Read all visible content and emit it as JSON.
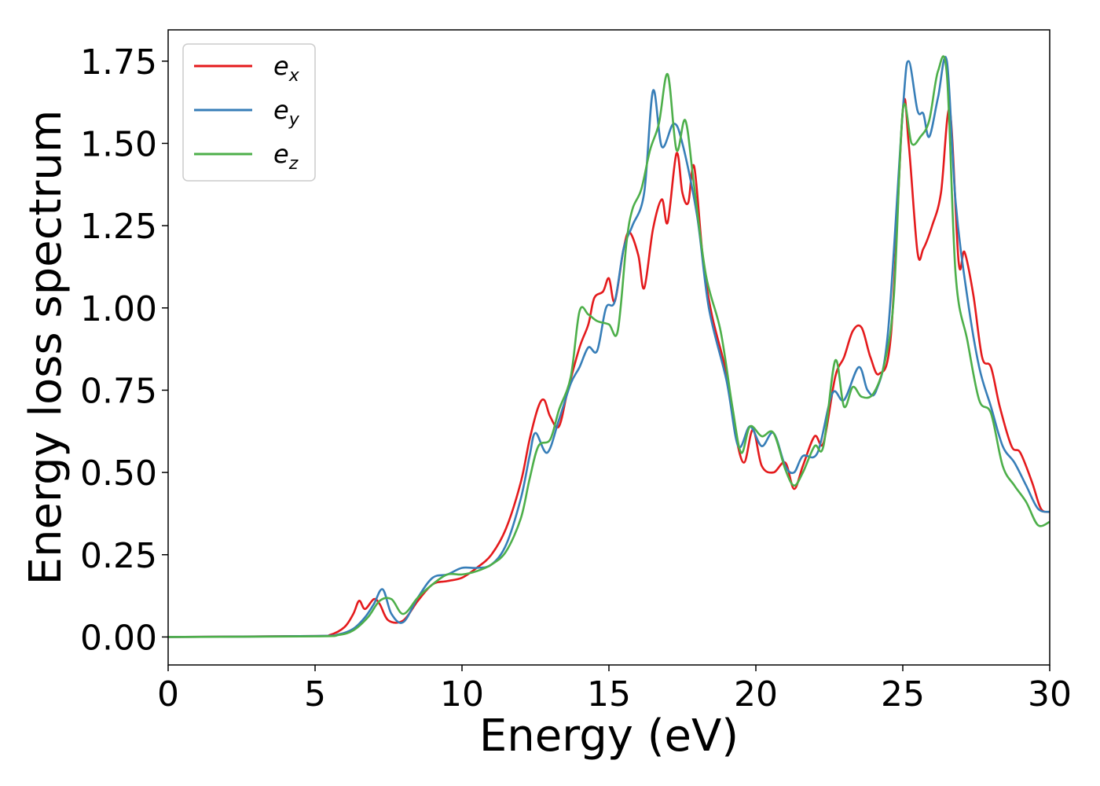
{
  "chart_data": {
    "type": "line",
    "xlabel": "Energy (eV)",
    "ylabel": "Energy loss spectrum",
    "xlim": [
      0,
      30
    ],
    "ylim": [
      -0.085,
      1.845
    ],
    "xticks": [
      "0",
      "5",
      "10",
      "15",
      "20",
      "25",
      "30"
    ],
    "yticks": [
      "0.00",
      "0.25",
      "0.50",
      "0.75",
      "1.00",
      "1.25",
      "1.50",
      "1.75"
    ],
    "grid": false,
    "legend_position": "top-left",
    "series": [
      {
        "name": "e",
        "subscript": "x",
        "color": "#e41a1c",
        "points": [
          [
            0,
            0
          ],
          [
            5,
            0.003
          ],
          [
            5.5,
            0.006
          ],
          [
            6,
            0.03
          ],
          [
            6.3,
            0.07
          ],
          [
            6.5,
            0.11
          ],
          [
            6.7,
            0.085
          ],
          [
            7,
            0.115
          ],
          [
            7.2,
            0.1
          ],
          [
            7.5,
            0.05
          ],
          [
            8,
            0.05
          ],
          [
            8.5,
            0.11
          ],
          [
            9,
            0.16
          ],
          [
            9.5,
            0.17
          ],
          [
            10,
            0.18
          ],
          [
            10.5,
            0.21
          ],
          [
            11,
            0.25
          ],
          [
            11.5,
            0.33
          ],
          [
            12,
            0.47
          ],
          [
            12.3,
            0.6
          ],
          [
            12.6,
            0.7
          ],
          [
            12.8,
            0.72
          ],
          [
            13,
            0.67
          ],
          [
            13.3,
            0.64
          ],
          [
            13.6,
            0.75
          ],
          [
            14,
            0.88
          ],
          [
            14.3,
            0.95
          ],
          [
            14.5,
            1.03
          ],
          [
            14.8,
            1.05
          ],
          [
            15,
            1.09
          ],
          [
            15.2,
            1.02
          ],
          [
            15.5,
            1.18
          ],
          [
            15.7,
            1.23
          ],
          [
            16,
            1.16
          ],
          [
            16.2,
            1.06
          ],
          [
            16.5,
            1.24
          ],
          [
            16.8,
            1.33
          ],
          [
            17,
            1.26
          ],
          [
            17.3,
            1.47
          ],
          [
            17.5,
            1.35
          ],
          [
            17.7,
            1.32
          ],
          [
            17.9,
            1.43
          ],
          [
            18.2,
            1.15
          ],
          [
            18.5,
            0.98
          ],
          [
            19,
            0.8
          ],
          [
            19.3,
            0.62
          ],
          [
            19.6,
            0.53
          ],
          [
            19.9,
            0.63
          ],
          [
            20.2,
            0.52
          ],
          [
            20.6,
            0.5
          ],
          [
            21,
            0.53
          ],
          [
            21.3,
            0.45
          ],
          [
            21.6,
            0.52
          ],
          [
            22,
            0.61
          ],
          [
            22.3,
            0.59
          ],
          [
            22.7,
            0.79
          ],
          [
            23,
            0.85
          ],
          [
            23.3,
            0.93
          ],
          [
            23.6,
            0.94
          ],
          [
            23.9,
            0.85
          ],
          [
            24.2,
            0.8
          ],
          [
            24.6,
            0.92
          ],
          [
            25,
            1.6
          ],
          [
            25.2,
            1.5
          ],
          [
            25.5,
            1.17
          ],
          [
            25.7,
            1.18
          ],
          [
            26,
            1.25
          ],
          [
            26.3,
            1.35
          ],
          [
            26.6,
            1.6
          ],
          [
            26.9,
            1.14
          ],
          [
            27.1,
            1.17
          ],
          [
            27.4,
            1.04
          ],
          [
            27.7,
            0.85
          ],
          [
            28,
            0.82
          ],
          [
            28.3,
            0.7
          ],
          [
            28.7,
            0.58
          ],
          [
            29,
            0.56
          ],
          [
            29.4,
            0.47
          ],
          [
            29.7,
            0.39
          ],
          [
            30,
            0.38
          ]
        ]
      },
      {
        "name": "e",
        "subscript": "y",
        "color": "#377eb8",
        "points": [
          [
            0,
            0
          ],
          [
            5,
            0.003
          ],
          [
            5.8,
            0.008
          ],
          [
            6.3,
            0.025
          ],
          [
            6.7,
            0.06
          ],
          [
            7,
            0.1
          ],
          [
            7.3,
            0.145
          ],
          [
            7.6,
            0.07
          ],
          [
            8,
            0.045
          ],
          [
            8.5,
            0.12
          ],
          [
            9,
            0.18
          ],
          [
            9.5,
            0.19
          ],
          [
            10,
            0.21
          ],
          [
            10.5,
            0.21
          ],
          [
            11,
            0.22
          ],
          [
            11.5,
            0.28
          ],
          [
            12,
            0.42
          ],
          [
            12.3,
            0.55
          ],
          [
            12.5,
            0.62
          ],
          [
            12.9,
            0.56
          ],
          [
            13.3,
            0.66
          ],
          [
            13.7,
            0.77
          ],
          [
            14,
            0.82
          ],
          [
            14.3,
            0.88
          ],
          [
            14.6,
            0.87
          ],
          [
            14.9,
            1.0
          ],
          [
            15.2,
            1.02
          ],
          [
            15.5,
            1.18
          ],
          [
            15.8,
            1.25
          ],
          [
            16.2,
            1.35
          ],
          [
            16.5,
            1.66
          ],
          [
            16.8,
            1.49
          ],
          [
            17.2,
            1.56
          ],
          [
            17.5,
            1.5
          ],
          [
            18,
            1.28
          ],
          [
            18.4,
            1.0
          ],
          [
            19,
            0.78
          ],
          [
            19.4,
            0.58
          ],
          [
            19.8,
            0.64
          ],
          [
            20.2,
            0.58
          ],
          [
            20.6,
            0.62
          ],
          [
            21,
            0.52
          ],
          [
            21.3,
            0.5
          ],
          [
            21.6,
            0.55
          ],
          [
            22.1,
            0.56
          ],
          [
            22.6,
            0.74
          ],
          [
            23,
            0.72
          ],
          [
            23.5,
            0.82
          ],
          [
            23.8,
            0.75
          ],
          [
            24.1,
            0.75
          ],
          [
            24.5,
            0.93
          ],
          [
            25,
            1.6
          ],
          [
            25.2,
            1.75
          ],
          [
            25.5,
            1.6
          ],
          [
            25.7,
            1.59
          ],
          [
            25.9,
            1.52
          ],
          [
            26.2,
            1.64
          ],
          [
            26.5,
            1.75
          ],
          [
            26.8,
            1.32
          ],
          [
            27.2,
            1.03
          ],
          [
            27.6,
            0.82
          ],
          [
            28,
            0.7
          ],
          [
            28.4,
            0.58
          ],
          [
            28.8,
            0.53
          ],
          [
            29.2,
            0.46
          ],
          [
            29.6,
            0.39
          ],
          [
            30,
            0.38
          ]
        ]
      },
      {
        "name": "e",
        "subscript": "z",
        "color": "#4daf4a",
        "points": [
          [
            0,
            0
          ],
          [
            5,
            0.002
          ],
          [
            5.8,
            0.006
          ],
          [
            6.3,
            0.02
          ],
          [
            6.8,
            0.06
          ],
          [
            7.2,
            0.11
          ],
          [
            7.6,
            0.115
          ],
          [
            8,
            0.07
          ],
          [
            8.5,
            0.12
          ],
          [
            9,
            0.16
          ],
          [
            9.5,
            0.19
          ],
          [
            10,
            0.19
          ],
          [
            10.5,
            0.2
          ],
          [
            11,
            0.22
          ],
          [
            11.5,
            0.26
          ],
          [
            12,
            0.36
          ],
          [
            12.3,
            0.48
          ],
          [
            12.6,
            0.58
          ],
          [
            13,
            0.6
          ],
          [
            13.3,
            0.69
          ],
          [
            13.7,
            0.79
          ],
          [
            14,
            0.99
          ],
          [
            14.3,
            0.98
          ],
          [
            14.6,
            0.96
          ],
          [
            15,
            0.95
          ],
          [
            15.3,
            0.93
          ],
          [
            15.6,
            1.2
          ],
          [
            15.8,
            1.3
          ],
          [
            16.1,
            1.36
          ],
          [
            16.4,
            1.48
          ],
          [
            16.7,
            1.56
          ],
          [
            17,
            1.71
          ],
          [
            17.3,
            1.48
          ],
          [
            17.6,
            1.57
          ],
          [
            17.9,
            1.37
          ],
          [
            18.3,
            1.1
          ],
          [
            18.8,
            0.93
          ],
          [
            19.2,
            0.7
          ],
          [
            19.5,
            0.56
          ],
          [
            19.8,
            0.64
          ],
          [
            20.2,
            0.61
          ],
          [
            20.6,
            0.62
          ],
          [
            21,
            0.51
          ],
          [
            21.3,
            0.46
          ],
          [
            21.6,
            0.5
          ],
          [
            22,
            0.58
          ],
          [
            22.3,
            0.58
          ],
          [
            22.7,
            0.84
          ],
          [
            23,
            0.7
          ],
          [
            23.3,
            0.76
          ],
          [
            23.6,
            0.73
          ],
          [
            24,
            0.74
          ],
          [
            24.4,
            0.84
          ],
          [
            24.7,
            1.04
          ],
          [
            25,
            1.6
          ],
          [
            25.3,
            1.5
          ],
          [
            25.6,
            1.52
          ],
          [
            25.9,
            1.57
          ],
          [
            26.2,
            1.72
          ],
          [
            26.5,
            1.71
          ],
          [
            26.8,
            1.1
          ],
          [
            27.2,
            0.9
          ],
          [
            27.6,
            0.72
          ],
          [
            28,
            0.68
          ],
          [
            28.4,
            0.52
          ],
          [
            28.8,
            0.46
          ],
          [
            29.2,
            0.41
          ],
          [
            29.6,
            0.34
          ],
          [
            30,
            0.35
          ]
        ]
      }
    ]
  }
}
